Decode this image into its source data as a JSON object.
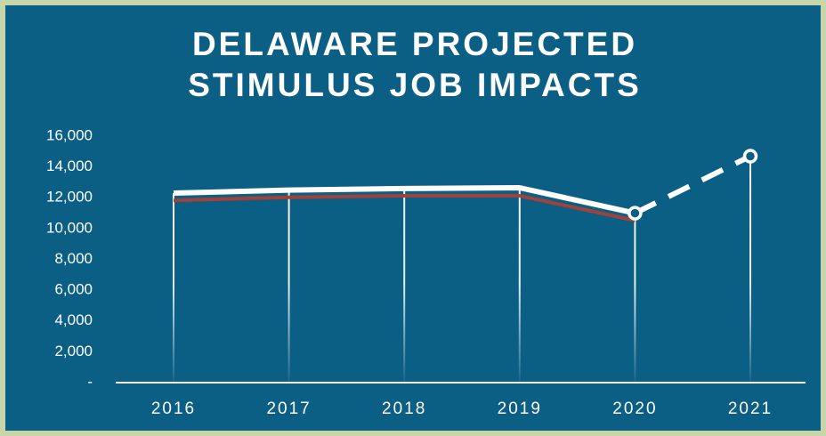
{
  "chart_data": {
    "type": "line",
    "title": [
      "DELAWARE PROJECTED",
      "STIMULUS JOB IMPACTS"
    ],
    "categories": [
      "2016",
      "2017",
      "2018",
      "2019",
      "2020",
      "2021"
    ],
    "series": [
      {
        "color": "#a0413a",
        "values": [
          12000,
          12200,
          12300,
          12300,
          10700,
          null
        ]
      },
      {
        "color": "#ffffff",
        "values": [
          12300,
          12500,
          12600,
          12650,
          11000,
          14700
        ]
      }
    ],
    "projected_from": "2020",
    "ylim": [
      0,
      16000
    ],
    "yticks": [
      {
        "value": 0,
        "label": "-"
      },
      {
        "value": 2000,
        "label": "2,000"
      },
      {
        "value": 4000,
        "label": "4,000"
      },
      {
        "value": 6000,
        "label": "6,000"
      },
      {
        "value": 8000,
        "label": "8,000"
      },
      {
        "value": 10000,
        "label": "10,000"
      },
      {
        "value": 12000,
        "label": "12,000"
      },
      {
        "value": 14000,
        "label": "14,000"
      },
      {
        "value": 16000,
        "label": "16,000"
      }
    ],
    "background": "#0b5e84",
    "border_color": "#c7d6a9"
  }
}
